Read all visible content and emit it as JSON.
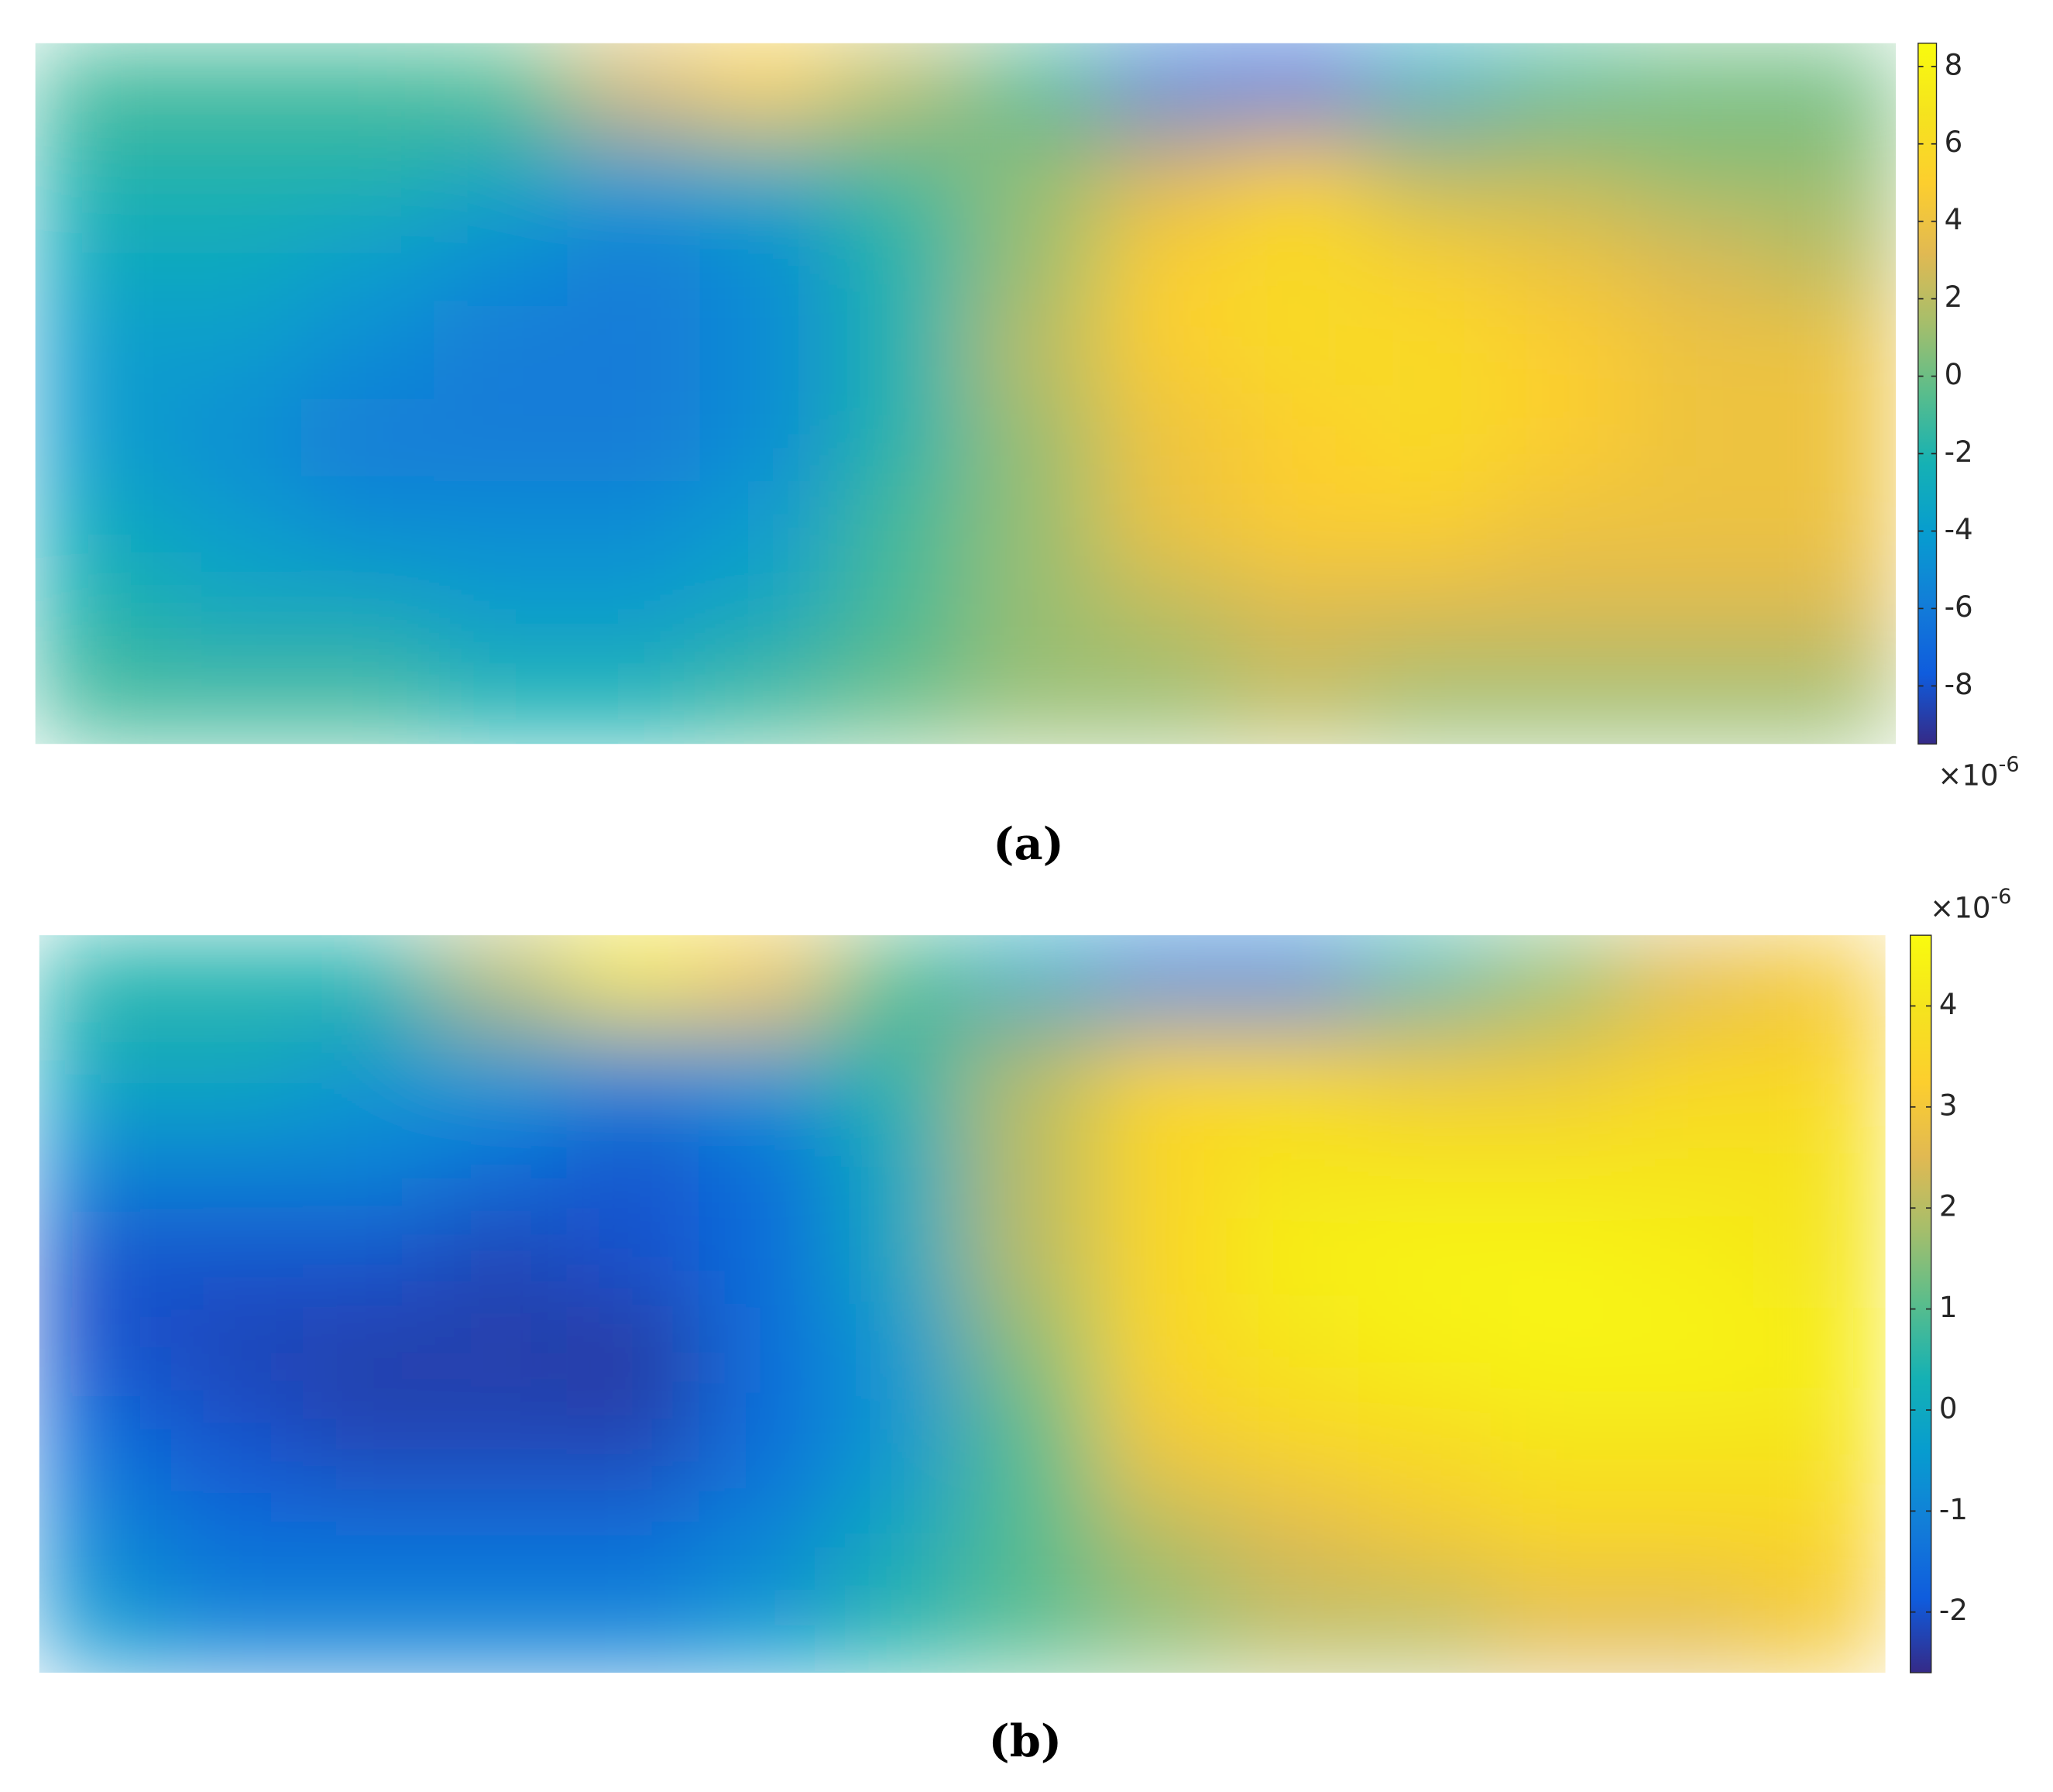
{
  "chart_data": [
    {
      "type": "heatmap",
      "caption": "(a)",
      "colormap": "parula",
      "clim": [
        -9.5,
        8.6
      ],
      "ticks": [
        -8,
        -6,
        -4,
        -2,
        0,
        2,
        4,
        6,
        8
      ],
      "exponent_label": {
        "base": "×10",
        "exponent": "-6"
      },
      "values": [
        [
          -1,
          -1,
          -1,
          -0.5,
          3,
          5,
          2,
          -1,
          -6,
          -7,
          -3,
          -1,
          0,
          0
        ],
        [
          -2,
          -2,
          -2,
          -3,
          -4,
          -3,
          -1,
          1,
          3,
          5,
          2,
          2,
          1,
          1
        ],
        [
          -3,
          -3,
          -4,
          -5,
          -6,
          -5,
          -2,
          1,
          5,
          6,
          5,
          4,
          3,
          2
        ],
        [
          -4,
          -4,
          -5,
          -6,
          -6,
          -5,
          -2,
          2,
          5,
          6,
          6,
          5,
          4,
          4
        ],
        [
          -4,
          -5,
          -6,
          -6,
          -6,
          -5,
          -2,
          1,
          4,
          5,
          6,
          5,
          4,
          4
        ],
        [
          -3,
          -4,
          -5,
          -5,
          -5,
          -4,
          -1,
          1,
          4,
          5,
          5,
          4,
          4,
          4
        ],
        [
          -2,
          -3,
          -3,
          -4,
          -4,
          -3,
          -1,
          1,
          2,
          3,
          3,
          3,
          3,
          3
        ],
        [
          -1,
          -1,
          -1,
          -2,
          -2,
          -1,
          0,
          1,
          1,
          2,
          1,
          1,
          1,
          1
        ]
      ]
    },
    {
      "type": "heatmap",
      "caption": "(b)",
      "colormap": "parula",
      "clim": [
        -2.6,
        4.7
      ],
      "ticks": [
        -2,
        -1,
        0,
        1,
        2,
        3,
        4
      ],
      "exponent_label": {
        "base": "×10",
        "exponent": "-6"
      },
      "values": [
        [
          0.5,
          0.5,
          0.5,
          2,
          4,
          3,
          1,
          0,
          -1,
          -1,
          0.5,
          1.5,
          2.5,
          3
        ],
        [
          0,
          0,
          -0.5,
          -0.5,
          -1,
          -0.5,
          0.5,
          2,
          3.5,
          3.5,
          3,
          3,
          3.5,
          3.5
        ],
        [
          -1,
          -1,
          -1,
          -1.5,
          -2,
          -1.5,
          0,
          2,
          3.5,
          4,
          4,
          4,
          4,
          4
        ],
        [
          -2,
          -2,
          -2,
          -2.2,
          -2,
          -1.5,
          0,
          2,
          3.5,
          4.3,
          4.5,
          4.5,
          4.3,
          4
        ],
        [
          -2,
          -2.2,
          -2.3,
          -2.3,
          -2.4,
          -1.5,
          -0.5,
          1.5,
          3.5,
          4,
          4.3,
          4.5,
          4.5,
          4.3
        ],
        [
          -1.5,
          -2,
          -2.2,
          -2.2,
          -2.2,
          -1.5,
          -0.5,
          1,
          3,
          3.5,
          3.7,
          4,
          4,
          4
        ],
        [
          -1,
          -1.5,
          -1.5,
          -1.5,
          -1.5,
          -1,
          0,
          1,
          2,
          2.5,
          3,
          3.5,
          3.5,
          3.5
        ],
        [
          -0.5,
          -1,
          -1,
          -1,
          -1,
          -0.5,
          0.5,
          1,
          1.5,
          2,
          2,
          2.5,
          2.5,
          3
        ]
      ]
    }
  ]
}
